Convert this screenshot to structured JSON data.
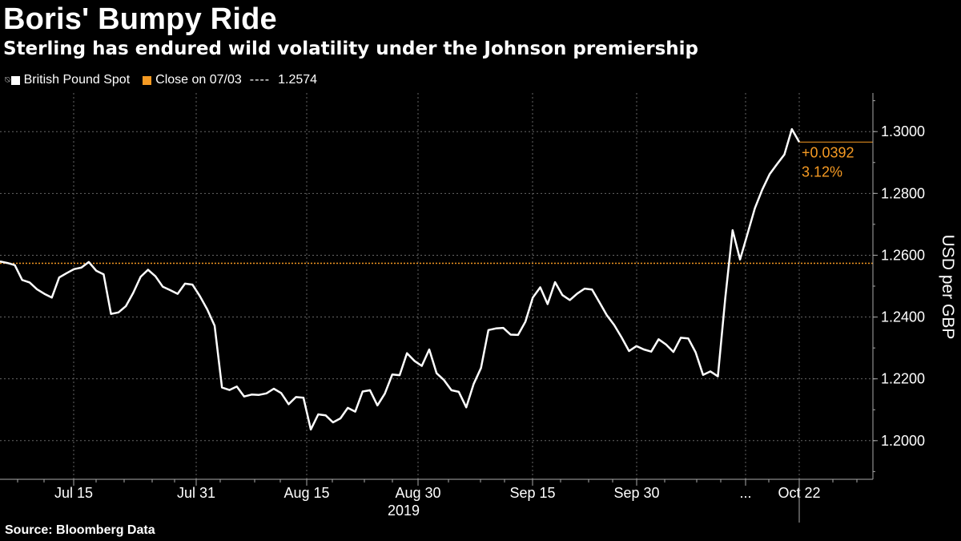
{
  "header": {
    "title": "Boris' Bumpy Ride",
    "subtitle": "Sterling has endured wild volatility under the Johnson premiership"
  },
  "legend": {
    "items": [
      {
        "label": "British Pound Spot",
        "color": "#ffffff",
        "icon": "series-toggle-icon"
      },
      {
        "label": "Close on 07/03",
        "separator": "----",
        "value": "1.2574",
        "color": "#f59a23"
      }
    ]
  },
  "source": "Source: Bloomberg Data",
  "colors": {
    "background": "#000000",
    "series": "#ffffff",
    "reference": "#f59a23",
    "grid": "#666666",
    "axis": "#aaaaaa"
  },
  "chart_data": {
    "type": "line",
    "title": "Boris' Bumpy Ride",
    "subtitle": "Sterling has endured wild volatility under the Johnson premiership",
    "ylabel": "USD per GBP",
    "ylim": [
      1.1875,
      1.3125
    ],
    "yticks": [
      "1.3000",
      "1.2800",
      "1.2600",
      "1.2400",
      "1.2200",
      "1.2000"
    ],
    "xticks": [
      "Jul 15",
      "Jul 31",
      "Aug 15",
      "Aug 30",
      "Sep 15",
      "Sep 30",
      "...",
      "Oct 22"
    ],
    "xsublabel": "2019",
    "grid": true,
    "legend_position": "top-left",
    "reference_line": {
      "label": "Close on 07/03",
      "value": 1.2574
    },
    "annotation": {
      "change": "+0.0392",
      "pct": "3.12%",
      "last": 1.2966
    },
    "series": [
      {
        "name": "British Pound Spot",
        "values": [
          1.258,
          1.2575,
          1.2568,
          1.252,
          1.2512,
          1.249,
          1.2475,
          1.2463,
          1.2528,
          1.2542,
          1.2555,
          1.256,
          1.2578,
          1.255,
          1.2538,
          1.241,
          1.2415,
          1.2435,
          1.2478,
          1.253,
          1.2553,
          1.2532,
          1.2498,
          1.2487,
          1.2475,
          1.2508,
          1.2505,
          1.2468,
          1.2425,
          1.2372,
          1.2172,
          1.2164,
          1.2175,
          1.2143,
          1.2149,
          1.2148,
          1.2153,
          1.2168,
          1.2154,
          1.2118,
          1.2141,
          1.2139,
          1.2036,
          1.2085,
          1.2082,
          1.2059,
          1.2072,
          1.2106,
          1.2094,
          1.2159,
          1.2163,
          1.2114,
          1.2152,
          1.2214,
          1.2212,
          1.2283,
          1.2258,
          1.2242,
          1.2295,
          1.2218,
          1.2196,
          1.2163,
          1.2158,
          1.2108,
          1.2183,
          1.2235,
          1.2358,
          1.2363,
          1.2365,
          1.2343,
          1.2342,
          1.2385,
          1.2463,
          1.2496,
          1.2442,
          1.2513,
          1.2471,
          1.2455,
          1.2476,
          1.2492,
          1.2489,
          1.2448,
          1.2406,
          1.2374,
          1.2334,
          1.229,
          1.2306,
          1.2295,
          1.2288,
          1.2328,
          1.2311,
          1.2287,
          1.2333,
          1.2331,
          1.2286,
          1.2213,
          1.2224,
          1.2208,
          1.246,
          1.2681,
          1.2586,
          1.2668,
          1.2752,
          1.2812,
          1.2862,
          1.2895,
          1.2926,
          1.3008,
          1.2966
        ]
      }
    ]
  }
}
